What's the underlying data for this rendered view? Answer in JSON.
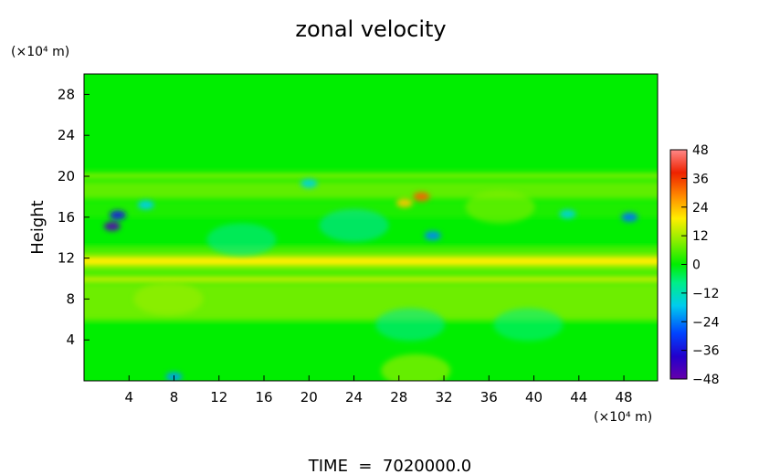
{
  "chart_data": {
    "type": "heatmap",
    "title": "zonal velocity",
    "ylabel": "Height",
    "y_unit_label": "(×10⁴ m)",
    "x_unit_label": "(×10⁴ m)",
    "footer": "TIME  =  7020000.0",
    "xlim": [
      0,
      51
    ],
    "ylim": [
      0,
      30
    ],
    "x_ticks": [
      4,
      8,
      12,
      16,
      20,
      24,
      28,
      32,
      36,
      40,
      44,
      48
    ],
    "y_ticks": [
      4,
      8,
      12,
      16,
      20,
      24,
      28
    ],
    "colorbar": {
      "ticks": [
        48,
        36,
        24,
        12,
        0,
        -12,
        -24,
        -36,
        -48
      ],
      "labels": [
        "48",
        "36",
        "24",
        "12",
        "0",
        "−12",
        "−24",
        "−36",
        "−48"
      ],
      "range": [
        -48,
        48
      ]
    },
    "bands": [
      {
        "y_range": [
          21,
          30
        ],
        "value": 0
      },
      {
        "y_range": [
          19.8,
          20.3
        ],
        "value": 10
      },
      {
        "y_range": [
          17.8,
          19.5
        ],
        "value": 7
      },
      {
        "y_range": [
          16,
          17.5
        ],
        "value": 2
      },
      {
        "y_range": [
          13,
          16
        ],
        "value": 0
      },
      {
        "y_range": [
          12.4,
          13
        ],
        "value": 6
      },
      {
        "y_range": [
          11.2,
          12.2
        ],
        "value": 20
      },
      {
        "y_range": [
          10.5,
          11
        ],
        "value": 8
      },
      {
        "y_range": [
          9.7,
          10.2
        ],
        "value": 18
      },
      {
        "y_range": [
          6,
          9.5
        ],
        "value": 8
      },
      {
        "y_range": [
          0,
          6
        ],
        "value": 0
      }
    ],
    "features": [
      {
        "x": 3.0,
        "y": 16.2,
        "value": -36
      },
      {
        "x": 2.5,
        "y": 15.1,
        "value": -46
      },
      {
        "x": 5.5,
        "y": 17.2,
        "value": -18
      },
      {
        "x": 30.0,
        "y": 18.0,
        "value": 34
      },
      {
        "x": 28.5,
        "y": 17.4,
        "value": 24
      },
      {
        "x": 31.0,
        "y": 14.2,
        "value": -24
      },
      {
        "x": 48.5,
        "y": 16.0,
        "value": -26
      },
      {
        "x": 43.0,
        "y": 16.3,
        "value": -16
      },
      {
        "x": 20.0,
        "y": 19.3,
        "value": -16
      },
      {
        "x": 8.0,
        "y": 0.4,
        "value": -22
      },
      {
        "x": 29.5,
        "y": 1.0,
        "value": 14
      },
      {
        "x": 29.0,
        "y": 5.5,
        "value": -10
      },
      {
        "x": 39.5,
        "y": 5.5,
        "value": -8
      },
      {
        "x": 7.5,
        "y": 8.0,
        "value": 12
      },
      {
        "x": 24.0,
        "y": 15.2,
        "value": -12
      },
      {
        "x": 14.0,
        "y": 13.8,
        "value": -10
      },
      {
        "x": 37.0,
        "y": 17.0,
        "value": 10
      }
    ]
  }
}
